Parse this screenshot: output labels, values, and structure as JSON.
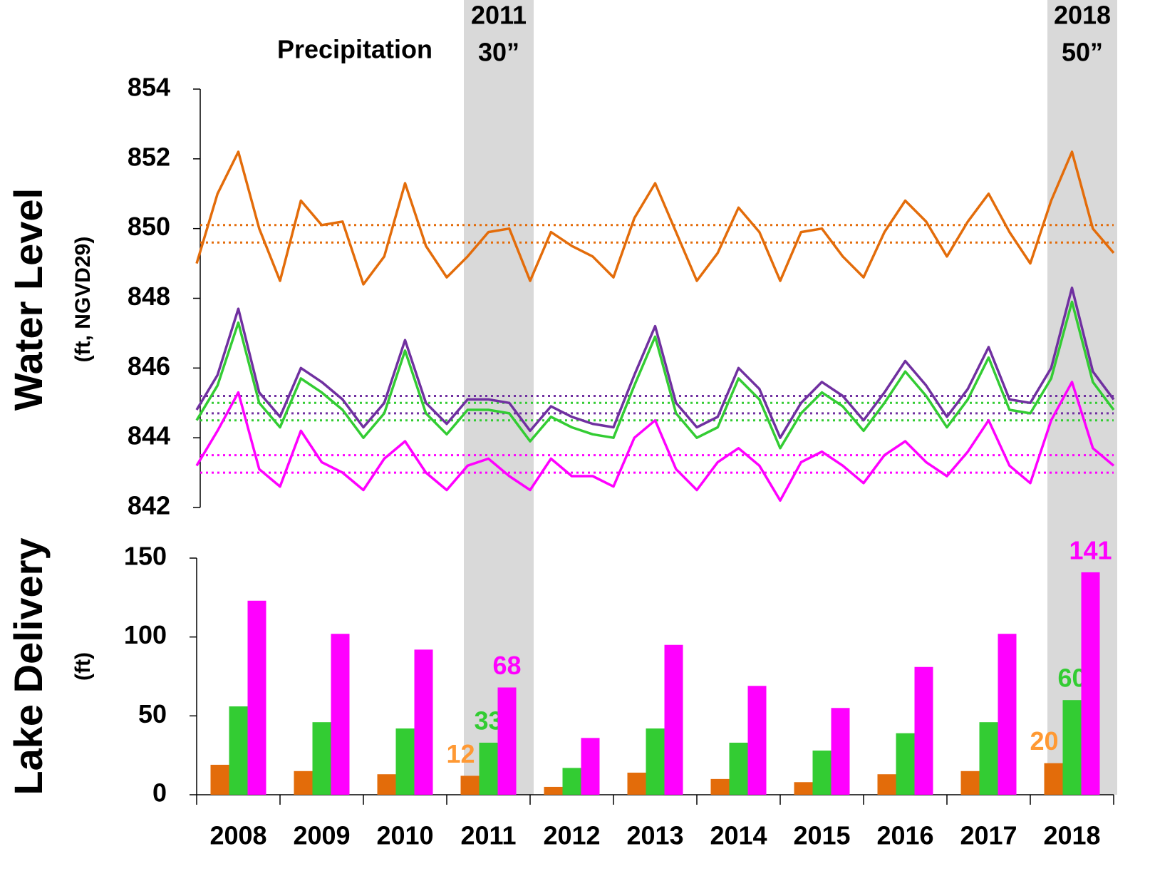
{
  "chart_data": [
    {
      "type": "line",
      "ylabel": "Water Level",
      "ylabel_sub": "(ft, NGVD29)",
      "annotation": "Precipitation",
      "highlights": [
        {
          "year": "2011",
          "amount": "30”",
          "category": 3
        },
        {
          "year": "2018",
          "amount": "50”",
          "category": 10
        }
      ],
      "ylim": [
        842,
        854
      ],
      "yticks": [
        842,
        844,
        846,
        848,
        850,
        852,
        854
      ],
      "xlim": [
        2008,
        2019
      ],
      "x": [
        2008,
        2008.25,
        2008.5,
        2008.75,
        2009,
        2009.25,
        2009.5,
        2009.75,
        2010,
        2010.25,
        2010.5,
        2010.75,
        2011,
        2011.25,
        2011.5,
        2011.75,
        2012,
        2012.25,
        2012.5,
        2012.75,
        2013,
        2013.25,
        2013.5,
        2013.75,
        2014,
        2014.25,
        2014.5,
        2014.75,
        2015,
        2015.25,
        2015.5,
        2015.75,
        2016,
        2016.25,
        2016.5,
        2016.75,
        2017,
        2017.25,
        2017.5,
        2017.75,
        2018,
        2018.25,
        2018.5,
        2018.75,
        2019
      ],
      "series": [
        {
          "color": "#e36c0a",
          "values": [
            849,
            851,
            852.2,
            850,
            848.5,
            850.8,
            850.1,
            850.2,
            848.4,
            849.2,
            851.3,
            849.5,
            848.6,
            849.2,
            849.9,
            850,
            848.5,
            849.9,
            849.5,
            849.2,
            848.6,
            850.3,
            851.3,
            849.9,
            848.5,
            849.3,
            850.6,
            849.9,
            848.5,
            849.9,
            850,
            849.2,
            848.6,
            849.9,
            850.8,
            850.2,
            849.2,
            850.2,
            851,
            849.9,
            849,
            850.8,
            852.2,
            850,
            849.3
          ]
        },
        {
          "color": "#7030a0",
          "values": [
            844.8,
            845.8,
            847.7,
            845.3,
            844.6,
            846,
            845.6,
            845.1,
            844.3,
            845,
            846.8,
            845,
            844.4,
            845.1,
            845.1,
            845,
            844.2,
            844.9,
            844.6,
            844.4,
            844.3,
            845.8,
            847.2,
            845,
            844.3,
            844.6,
            846,
            845.4,
            844,
            845,
            845.6,
            845.2,
            844.5,
            845.3,
            846.2,
            845.5,
            844.6,
            845.4,
            846.6,
            845.1,
            845,
            846,
            848.3,
            845.9,
            845.1
          ]
        },
        {
          "color": "#33cc33",
          "values": [
            844.5,
            845.5,
            847.3,
            845,
            844.3,
            845.7,
            845.3,
            844.8,
            844,
            844.7,
            846.5,
            844.7,
            844.1,
            844.8,
            844.8,
            844.7,
            843.9,
            844.6,
            844.3,
            844.1,
            844,
            845.5,
            846.9,
            844.7,
            844,
            844.3,
            845.7,
            845.1,
            843.7,
            844.7,
            845.3,
            844.9,
            844.2,
            845,
            845.9,
            845.2,
            844.3,
            845.1,
            846.3,
            844.8,
            844.7,
            845.7,
            847.9,
            845.6,
            844.8
          ]
        },
        {
          "color": "#ff00ff",
          "values": [
            843.2,
            844.2,
            845.3,
            843.1,
            842.6,
            844.2,
            843.3,
            843,
            842.5,
            843.4,
            843.9,
            843,
            842.5,
            843.2,
            843.4,
            842.9,
            842.5,
            843.4,
            842.9,
            842.9,
            842.6,
            844,
            844.5,
            843.1,
            842.5,
            843.3,
            843.7,
            843.2,
            842.2,
            843.3,
            843.6,
            843.2,
            842.7,
            843.5,
            843.9,
            843.3,
            842.9,
            843.6,
            844.5,
            843.2,
            842.7,
            844.5,
            845.6,
            843.7,
            843.2
          ]
        }
      ],
      "reference_lines": [
        {
          "color": "#e36c0a",
          "value": 850.1
        },
        {
          "color": "#e36c0a",
          "value": 849.6
        },
        {
          "color": "#7030a0",
          "value": 845.2
        },
        {
          "color": "#7030a0",
          "value": 844.7
        },
        {
          "color": "#33cc33",
          "value": 845.0
        },
        {
          "color": "#33cc33",
          "value": 844.5
        },
        {
          "color": "#ff00ff",
          "value": 843.5
        },
        {
          "color": "#ff00ff",
          "value": 843.0
        }
      ]
    },
    {
      "type": "bar",
      "ylabel": "Lake Delivery",
      "ylabel_sub": "(ft)",
      "categories": [
        "2008",
        "2009",
        "2010",
        "2011",
        "2012",
        "2013",
        "2014",
        "2015",
        "2016",
        "2017",
        "2018"
      ],
      "ylim": [
        0,
        150
      ],
      "yticks": [
        0,
        50,
        100,
        150
      ],
      "series": [
        {
          "color": "#e36c0a",
          "label_color": "#ff9933",
          "values": [
            19,
            15,
            13,
            12,
            5,
            14,
            10,
            8,
            13,
            15,
            20
          ],
          "value_labels": [
            null,
            null,
            null,
            "12",
            null,
            null,
            null,
            null,
            null,
            null,
            "20"
          ]
        },
        {
          "color": "#33cc33",
          "label_color": "#33cc33",
          "values": [
            56,
            46,
            42,
            33,
            17,
            42,
            33,
            28,
            39,
            46,
            60
          ],
          "value_labels": [
            null,
            null,
            null,
            "33",
            null,
            null,
            null,
            null,
            null,
            null,
            "60"
          ]
        },
        {
          "color": "#ff00ff",
          "label_color": "#ff00ff",
          "values": [
            123,
            102,
            92,
            68,
            36,
            95,
            69,
            55,
            81,
            102,
            141
          ],
          "value_labels": [
            null,
            null,
            null,
            "68",
            null,
            null,
            null,
            null,
            null,
            null,
            "141"
          ]
        }
      ]
    }
  ]
}
